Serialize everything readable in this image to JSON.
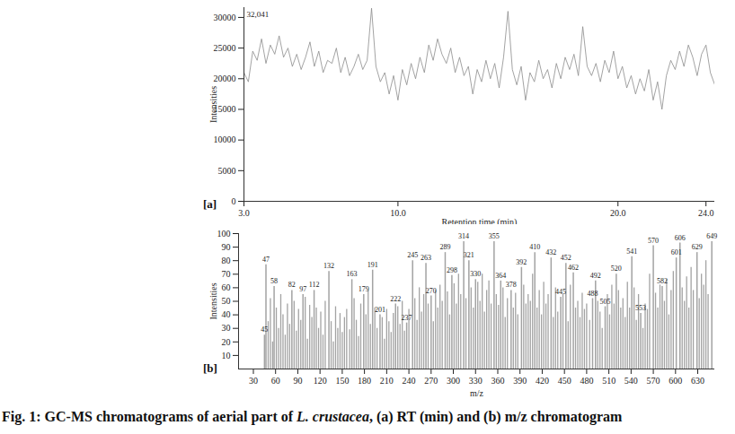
{
  "caption": {
    "prefix": "Fig. 1: GC-MS chromatograms of aerial part of ",
    "italic": "L. crustacea",
    "suffix": ", (a) RT (min) and (b) m/z chromatogram"
  },
  "chart_data": [
    {
      "type": "line",
      "panel_label": "[a]",
      "annotation": "32,041",
      "x_label": "Retention time (min)",
      "y_label": "Intensities",
      "color": "#8c8c8c",
      "x": [
        3,
        3.2,
        3.4,
        3.6,
        3.8,
        4,
        4.2,
        4.4,
        4.6,
        4.8,
        5,
        5.2,
        5.4,
        5.6,
        5.8,
        6,
        6.2,
        6.4,
        6.6,
        6.8,
        7,
        7.2,
        7.4,
        7.6,
        7.8,
        8,
        8.2,
        8.4,
        8.6,
        8.8,
        9,
        9.2,
        9.4,
        9.6,
        9.8,
        10,
        10.2,
        10.4,
        10.6,
        10.8,
        11,
        11.2,
        11.4,
        11.6,
        11.8,
        12,
        12.2,
        12.4,
        12.6,
        12.8,
        13,
        13.2,
        13.4,
        13.6,
        13.8,
        14,
        14.2,
        14.4,
        14.6,
        14.8,
        15,
        15.2,
        15.4,
        15.6,
        15.8,
        16,
        16.2,
        16.4,
        16.6,
        16.8,
        17,
        17.2,
        17.4,
        17.6,
        17.8,
        18,
        18.2,
        18.4,
        18.6,
        18.8,
        19,
        19.2,
        19.4,
        19.6,
        19.8,
        20,
        20.2,
        20.4,
        20.6,
        20.8,
        21,
        21.2,
        21.4,
        21.6,
        21.8,
        22,
        22.2,
        22.4,
        22.6,
        22.8,
        23,
        23.2,
        23.4,
        23.6,
        23.8,
        24,
        24.2,
        24.4
      ],
      "values": [
        21000,
        19500,
        24500,
        23000,
        26500,
        22500,
        25500,
        24000,
        27000,
        23500,
        25000,
        22000,
        24000,
        21500,
        23500,
        26000,
        22000,
        24500,
        21000,
        23000,
        22500,
        25000,
        21000,
        23500,
        20500,
        22000,
        24000,
        21500,
        23000,
        31500,
        22000,
        19500,
        21000,
        17500,
        20500,
        16500,
        21500,
        19000,
        22500,
        20000,
        23500,
        21000,
        25500,
        23000,
        26500,
        24000,
        22500,
        25000,
        21000,
        23500,
        20500,
        22000,
        17500,
        21500,
        19500,
        23000,
        20000,
        22500,
        18500,
        23500,
        31000,
        21500,
        19000,
        22000,
        16500,
        21000,
        19500,
        23000,
        20000,
        21500,
        18500,
        22500,
        20000,
        23500,
        21500,
        24000,
        20500,
        28500,
        22000,
        20500,
        22500,
        19500,
        23000,
        21000,
        24500,
        20000,
        22000,
        18500,
        20500,
        17500,
        20000,
        18000,
        21500,
        16500,
        19500,
        15000,
        20500,
        23000,
        21500,
        24500,
        22000,
        25500,
        23500,
        20500,
        24000,
        25500,
        21000,
        19000
      ],
      "xlim": [
        3,
        24.4
      ],
      "ylim": [
        0,
        31600
      ],
      "xticks": [
        {
          "value": 3,
          "label": "3.0"
        },
        {
          "value": 10,
          "label": "10.0"
        },
        {
          "value": 20,
          "label": "20.0"
        },
        {
          "value": 24,
          "label": "24.0"
        }
      ],
      "yticks": [
        0,
        5000,
        10000,
        15000,
        20000,
        25000,
        30000
      ]
    },
    {
      "type": "bar",
      "panel_label": "[b]",
      "x_label": "m/z",
      "y_label": "Intensities",
      "color": "#a3a3a3",
      "labeled_peaks": {
        "x": [
          45,
          47,
          58,
          82,
          97,
          112,
          132,
          163,
          179,
          191,
          201,
          222,
          237,
          245,
          263,
          270,
          289,
          298,
          314,
          321,
          330,
          355,
          364,
          378,
          392,
          410,
          432,
          445,
          452,
          462,
          488,
          492,
          505,
          520,
          541,
          553,
          570,
          582,
          601,
          606,
          629,
          649
        ],
        "values": [
          25,
          77,
          61,
          58,
          55,
          58,
          72,
          66,
          55,
          73,
          40,
          48,
          34,
          80,
          78,
          54,
          86,
          69,
          94,
          80,
          66,
          94,
          65,
          58,
          75,
          86,
          82,
          53,
          78,
          71,
          52,
          65,
          46,
          70,
          83,
          41,
          91,
          61,
          82,
          93,
          86,
          94
        ]
      },
      "other_peaks": {
        "x": [
          50,
          53,
          56,
          61,
          64,
          67,
          70,
          73,
          76,
          79,
          85,
          88,
          91,
          94,
          100,
          103,
          106,
          109,
          115,
          118,
          121,
          124,
          127,
          135,
          138,
          141,
          144,
          147,
          150,
          153,
          156,
          160,
          166,
          169,
          172,
          175,
          182,
          185,
          188,
          194,
          197,
          204,
          207,
          210,
          213,
          216,
          219,
          225,
          228,
          231,
          234,
          240,
          248,
          251,
          254,
          257,
          260,
          266,
          273,
          276,
          279,
          282,
          285,
          292,
          295,
          301,
          304,
          307,
          310,
          317,
          324,
          327,
          333,
          336,
          339,
          342,
          345,
          348,
          351,
          358,
          361,
          367,
          370,
          373,
          381,
          384,
          387,
          395,
          398,
          401,
          404,
          407,
          413,
          416,
          419,
          422,
          425,
          428,
          435,
          438,
          441,
          448,
          455,
          458,
          465,
          468,
          471,
          474,
          477,
          480,
          484,
          495,
          498,
          501,
          508,
          511,
          514,
          517,
          523,
          526,
          529,
          532,
          535,
          538,
          544,
          547,
          550,
          556,
          559,
          562,
          565,
          573,
          576,
          579,
          585,
          588,
          591,
          594,
          597,
          609,
          612,
          615,
          618,
          621,
          624,
          632,
          635,
          638,
          641,
          644
        ],
        "values": [
          35,
          52,
          20,
          45,
          30,
          55,
          40,
          25,
          48,
          33,
          50,
          28,
          44,
          36,
          53,
          22,
          47,
          38,
          45,
          30,
          42,
          25,
          50,
          35,
          20,
          46,
          30,
          41,
          27,
          38,
          44,
          29,
          52,
          36,
          24,
          48,
          40,
          58,
          33,
          45,
          30,
          38,
          22,
          44,
          35,
          27,
          41,
          46,
          33,
          50,
          28,
          44,
          52,
          36,
          60,
          42,
          55,
          48,
          35,
          58,
          45,
          62,
          50,
          57,
          40,
          63,
          48,
          70,
          55,
          52,
          60,
          45,
          64,
          50,
          70,
          42,
          58,
          65,
          48,
          55,
          47,
          60,
          38,
          52,
          45,
          56,
          40,
          62,
          48,
          55,
          50,
          70,
          45,
          58,
          40,
          64,
          48,
          55,
          38,
          60,
          42,
          55,
          35,
          62,
          45,
          50,
          38,
          56,
          44,
          48,
          36,
          50,
          42,
          30,
          55,
          40,
          62,
          48,
          58,
          45,
          52,
          38,
          64,
          45,
          60,
          36,
          55,
          30,
          48,
          44,
          70,
          56,
          45,
          62,
          50,
          66,
          40,
          58,
          72,
          60,
          50,
          68,
          45,
          75,
          58,
          52,
          70,
          62,
          80,
          55
        ]
      },
      "xlim": [
        10,
        653
      ],
      "ylim": [
        0,
        100
      ],
      "xticks": [
        30,
        60,
        90,
        120,
        150,
        180,
        210,
        240,
        270,
        300,
        330,
        360,
        390,
        420,
        450,
        480,
        510,
        540,
        570,
        600,
        630
      ],
      "yticks": [
        10,
        20,
        30,
        40,
        50,
        60,
        70,
        80,
        90,
        100
      ]
    }
  ]
}
